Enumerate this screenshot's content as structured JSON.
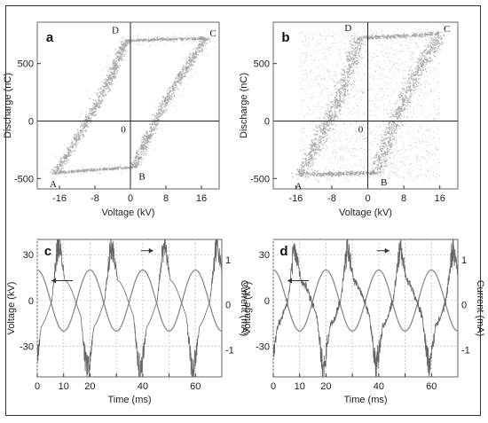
{
  "chart_data": [
    {
      "panel": "a",
      "type": "scatter",
      "xlabel": "Voltage (kV)",
      "ylabel": "Discharge (nC)",
      "xticks": [
        -16,
        -8,
        0,
        8,
        16
      ],
      "yticks": [
        500,
        0,
        -500
      ],
      "xlim": [
        -21,
        20
      ],
      "ylim": [
        -590,
        860
      ],
      "origin_label": "0",
      "points": [
        {
          "label": "A",
          "x": -17,
          "y": -450
        },
        {
          "label": "B",
          "x": 1,
          "y": -400
        },
        {
          "label": "C",
          "x": 17,
          "y": 720
        },
        {
          "label": "D",
          "x": -1,
          "y": 700
        }
      ],
      "loop": {
        "x": [
          -17,
          -1,
          17,
          1,
          -17
        ],
        "y": [
          -450,
          700,
          720,
          -400,
          -450
        ]
      }
    },
    {
      "panel": "b",
      "type": "scatter",
      "xlabel": "Voltage (kV)",
      "ylabel": "Discharge (nC)",
      "xticks": [
        -16,
        -8,
        0,
        8,
        16
      ],
      "yticks": [
        500,
        0,
        -500
      ],
      "xlim": [
        -21,
        20
      ],
      "ylim": [
        -590,
        860
      ],
      "origin_label": "0",
      "points": [
        {
          "label": "A",
          "x": -15,
          "y": -470
        },
        {
          "label": "B",
          "x": 2,
          "y": -450
        },
        {
          "label": "C",
          "x": 16,
          "y": 760
        },
        {
          "label": "D",
          "x": -2,
          "y": 720
        }
      ],
      "loop": {
        "x": [
          -15,
          -2,
          16,
          2,
          -15
        ],
        "y": [
          -470,
          720,
          760,
          -450,
          -470
        ]
      }
    },
    {
      "panel": "c",
      "type": "line",
      "xlabel": "Time (ms)",
      "ylabel": "Voltage (kV)",
      "y2label": "Current (mA)",
      "xticks": [
        0,
        10,
        20,
        30,
        40,
        50,
        60
      ],
      "xticklabels": [
        "0",
        "10",
        "20",
        "40",
        "60"
      ],
      "xticklabel_values": [
        0,
        10,
        20,
        40,
        60
      ],
      "yticks": [
        30,
        0,
        -30
      ],
      "y2ticks": [
        1,
        0,
        -1
      ],
      "xlim": [
        0,
        70
      ],
      "ylim": [
        -50,
        40
      ],
      "y2lim": [
        -1.6,
        1.45
      ],
      "voltage_amplitude_kV": 20,
      "period_ms": 20
    },
    {
      "panel": "d",
      "type": "line",
      "xlabel": "Time (ms)",
      "ylabel": "Voltage (kV)",
      "y2label": "Current (mA)",
      "xticks": [
        0,
        10,
        20,
        30,
        40,
        50,
        60
      ],
      "xticklabels": [
        "0",
        "10",
        "20",
        "40",
        "60"
      ],
      "xticklabel_values": [
        0,
        10,
        20,
        40,
        60
      ],
      "yticks": [
        30,
        0,
        -30
      ],
      "y2ticks": [
        1,
        0,
        -1
      ],
      "xlim": [
        0,
        70
      ],
      "ylim": [
        -50,
        40
      ],
      "y2lim": [
        -1.6,
        1.45
      ],
      "voltage_amplitude_kV": 20,
      "period_ms": 20
    }
  ]
}
